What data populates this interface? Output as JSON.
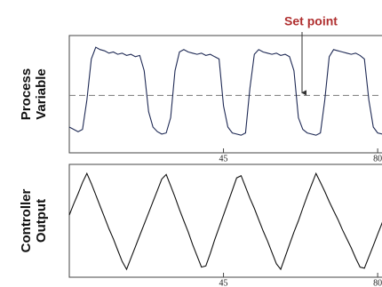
{
  "chart_data": [
    {
      "type": "line",
      "ylabel": [
        "Process",
        "Variable"
      ],
      "x": [
        10,
        11,
        12,
        13,
        14,
        15,
        16,
        17,
        18,
        19,
        20,
        21,
        22,
        23,
        24,
        25,
        26,
        27,
        28,
        29,
        30,
        31,
        32,
        33,
        34,
        35,
        36,
        37,
        38,
        39,
        40,
        41,
        42,
        43,
        44,
        45,
        46,
        47,
        48,
        49,
        50,
        51,
        52,
        53,
        54,
        55,
        56,
        57,
        58,
        59,
        60,
        61,
        62,
        63,
        64,
        65,
        66,
        67,
        68,
        69,
        70,
        71,
        72,
        73,
        74,
        75,
        76,
        77,
        78,
        79,
        80,
        81,
        82,
        83
      ],
      "series": [
        {
          "color": "#1f2a55",
          "values": [
            22,
            20,
            18,
            20,
            45,
            80,
            90,
            88,
            87,
            85,
            86,
            84,
            85,
            83,
            84,
            82,
            83,
            70,
            35,
            22,
            18,
            16,
            17,
            30,
            70,
            86,
            88,
            86,
            85,
            84,
            85,
            83,
            84,
            82,
            80,
            40,
            22,
            17,
            16,
            15,
            17,
            55,
            84,
            88,
            86,
            85,
            84,
            85,
            83,
            84,
            82,
            70,
            30,
            20,
            17,
            16,
            15,
            17,
            45,
            82,
            88,
            87,
            86,
            85,
            84,
            85,
            83,
            80,
            45,
            22,
            17,
            16,
            15,
            17
          ]
        }
      ],
      "reference_line": {
        "value": 49,
        "label": "Set point",
        "color": "#b03030"
      },
      "xlim": [
        10,
        83
      ],
      "ylim": [
        0,
        100
      ],
      "xticks": [
        45,
        80
      ]
    },
    {
      "type": "line",
      "ylabel": [
        "Controller",
        "Output"
      ],
      "x": [
        10,
        11,
        12,
        13,
        14,
        15,
        16,
        17,
        18,
        19,
        20,
        21,
        22,
        23,
        24,
        25,
        26,
        27,
        28,
        29,
        30,
        31,
        32,
        33,
        34,
        35,
        36,
        37,
        38,
        39,
        40,
        41,
        42,
        43,
        44,
        45,
        46,
        47,
        48,
        49,
        50,
        51,
        52,
        53,
        54,
        55,
        56,
        57,
        58,
        59,
        60,
        61,
        62,
        63,
        64,
        65,
        66,
        67,
        68,
        69,
        70,
        71,
        72,
        73,
        74,
        75,
        76,
        77,
        78,
        79,
        80,
        81,
        82,
        83
      ],
      "series": [
        {
          "color": "#111111",
          "values": [
            55,
            65,
            74,
            84,
            92,
            83,
            73,
            63,
            53,
            43,
            34,
            24,
            14,
            7,
            17,
            27,
            37,
            47,
            57,
            67,
            77,
            87,
            91,
            81,
            71,
            60,
            50,
            40,
            29,
            19,
            9,
            10,
            21,
            33,
            44,
            55,
            66,
            77,
            88,
            90,
            80,
            70,
            61,
            51,
            41,
            32,
            22,
            12,
            7,
            18,
            29,
            40,
            50,
            61,
            72,
            82,
            92,
            84,
            76,
            67,
            59,
            51,
            42,
            34,
            26,
            17,
            9,
            8,
            18,
            28,
            38,
            48,
            58,
            68
          ]
        }
      ],
      "xlim": [
        10,
        83
      ],
      "ylim": [
        0,
        100
      ],
      "xticks": [
        45,
        80
      ]
    }
  ]
}
